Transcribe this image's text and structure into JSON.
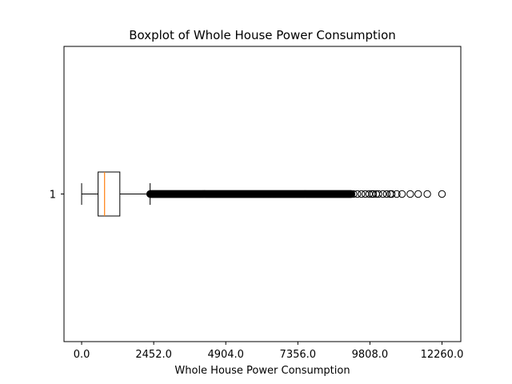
{
  "chart_data": {
    "type": "boxplot",
    "orientation": "horizontal",
    "title": "Boxplot of Whole House Power Consumption",
    "xlabel": "Whole House Power Consumption",
    "ylabel": "",
    "xlim": [
      -600,
      12900
    ],
    "x_ticks": [
      0,
      2452,
      4904,
      7356,
      9808,
      12260
    ],
    "x_tick_labels": [
      "0.0",
      "2452.0",
      "4904.0",
      "7356.0",
      "9808.0",
      "12260.0"
    ],
    "categories": [
      "1"
    ],
    "grid": false,
    "legend": "none",
    "series": [
      {
        "category": "1",
        "whisker_low": 0,
        "q1": 560,
        "median": 780,
        "q3": 1300,
        "whisker_high": 2330,
        "outliers_dense_range": [
          2330,
          9180
        ],
        "outliers": [
          9250,
          9380,
          9520,
          9650,
          9780,
          9870,
          9920,
          10020,
          10100,
          10250,
          10380,
          10500,
          10550,
          10720,
          10900,
          11180,
          11450,
          11760,
          12260
        ]
      }
    ],
    "colors": {
      "box": "#000000",
      "median": "#ff7f0e",
      "outlier": "#000000"
    }
  }
}
